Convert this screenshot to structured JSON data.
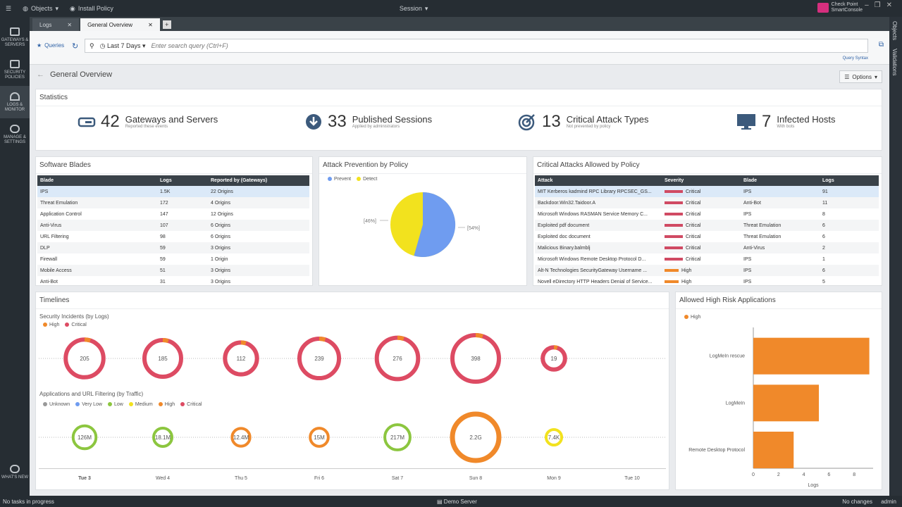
{
  "topbar": {
    "objects": "Objects",
    "install_policy": "Install Policy",
    "session": "Session",
    "logo_line1": "Check Point",
    "logo_line2": "SmartConsole"
  },
  "sidebar": [
    {
      "label": "GATEWAYS & SERVERS",
      "icon": "gateway-icon"
    },
    {
      "label": "SECURITY POLICIES",
      "icon": "policy-icon"
    },
    {
      "label": "LOGS & MONITOR",
      "icon": "gauge-icon"
    },
    {
      "label": "MANAGE & SETTINGS",
      "icon": "gear-icon"
    },
    {
      "label": "WHAT'S NEW",
      "icon": "help-icon"
    }
  ],
  "rightbar": [
    "Objects",
    "Validations"
  ],
  "tabs": [
    "Logs",
    "General Overview"
  ],
  "query": {
    "queries": "Queries",
    "range": "Last 7 Days",
    "placeholder": "Enter search query (Ctrl+F)",
    "syntax": "Query Syntax"
  },
  "page": {
    "title": "General Overview",
    "options": "Options"
  },
  "statistics": {
    "title": "Statistics",
    "items": [
      {
        "num": "42",
        "label": "Gateways and Servers",
        "sub": "Reported these events"
      },
      {
        "num": "33",
        "label": "Published Sessions",
        "sub": "Applied by administrators"
      },
      {
        "num": "13",
        "label": "Critical Attack Types",
        "sub": "Not prevented by policy"
      },
      {
        "num": "7",
        "label": "Infected Hosts",
        "sub": "With bots"
      }
    ]
  },
  "blades": {
    "title": "Software Blades",
    "headers": [
      "Blade",
      "Logs",
      "Reported by (Gateways)"
    ],
    "rows": [
      [
        "IPS",
        "1.5K",
        "22 Origins"
      ],
      [
        "Threat Emulation",
        "172",
        "4 Origins"
      ],
      [
        "Application Control",
        "147",
        "12 Origins"
      ],
      [
        "Anti-Virus",
        "107",
        "6 Origins"
      ],
      [
        "URL Filtering",
        "98",
        "6 Origins"
      ],
      [
        "DLP",
        "59",
        "3 Origins"
      ],
      [
        "Firewall",
        "59",
        "1 Origin"
      ],
      [
        "Mobile Access",
        "51",
        "3 Origins"
      ],
      [
        "Anti-Bot",
        "31",
        "3 Origins"
      ]
    ]
  },
  "attack_prevention": {
    "title": "Attack Prevention by Policy",
    "legend": [
      "Prevent",
      "Detect"
    ],
    "label_prevent": "[54%]",
    "label_detect": "[46%]"
  },
  "critical_attacks": {
    "title": "Critical Attacks Allowed by Policy",
    "headers": [
      "Attack",
      "Severity",
      "Blade",
      "Logs"
    ],
    "rows": [
      [
        "MIT Kerberos kadmind RPC Library RPCSEC_GS...",
        "Critical",
        "IPS",
        "91"
      ],
      [
        "Backdoor.Win32.Taidoor.A",
        "Critical",
        "Anti-Bot",
        "11"
      ],
      [
        "Microsoft Windows RASMAN Service Memory C...",
        "Critical",
        "IPS",
        "8"
      ],
      [
        "Exploited pdf document",
        "Critical",
        "Threat Emulation",
        "6"
      ],
      [
        "Exploited doc document",
        "Critical",
        "Threat Emulation",
        "6"
      ],
      [
        "Malicious Binary.balmblj",
        "Critical",
        "Anti-Virus",
        "2"
      ],
      [
        "Microsoft Windows Remote Desktop Protocol D...",
        "Critical",
        "IPS",
        "1"
      ],
      [
        "Alt-N Technologies SecurityGateway Username ...",
        "High",
        "IPS",
        "6"
      ],
      [
        "Novell eDirectory HTTP Headers Denial of Service...",
        "High",
        "IPS",
        "5"
      ]
    ]
  },
  "timelines": {
    "title": "Timelines",
    "incidents_title": "Security Incidents (by Logs)",
    "incidents_legend": [
      "High",
      "Critical"
    ],
    "incidents": [
      "205",
      "185",
      "112",
      "239",
      "276",
      "398",
      "19"
    ],
    "apps_title": "Applications and URL Filtering (by Traffic)",
    "apps_legend": [
      "Unknown",
      "Very Low",
      "Low",
      "Medium",
      "High",
      "Critical"
    ],
    "apps": [
      "126M",
      "18.1M",
      "12.4M",
      "15M",
      "217M",
      "2.2G",
      "7.4K"
    ],
    "days": [
      "Tue 3",
      "Wed 4",
      "Thu 5",
      "Fri 6",
      "Sat 7",
      "Sun 8",
      "Mon 9",
      "Tue 10"
    ]
  },
  "chart_data": {
    "type": "bar",
    "title": "Allowed High Risk Applications",
    "series": [
      {
        "name": "High",
        "values": [
          9.2,
          5.2,
          3.2
        ]
      }
    ],
    "categories": [
      "LogMeIn rescue",
      "LogMeIn",
      "Remote Desktop Protocol"
    ],
    "xlabel": "Logs",
    "xlim": [
      0,
      9.5
    ],
    "ticks": [
      "0",
      "2",
      "4",
      "6",
      "8"
    ],
    "color": "#f0892a"
  },
  "statusbar": {
    "left": "No tasks in progress",
    "center": "Demo Server",
    "changes": "No changes",
    "user": "admin"
  }
}
